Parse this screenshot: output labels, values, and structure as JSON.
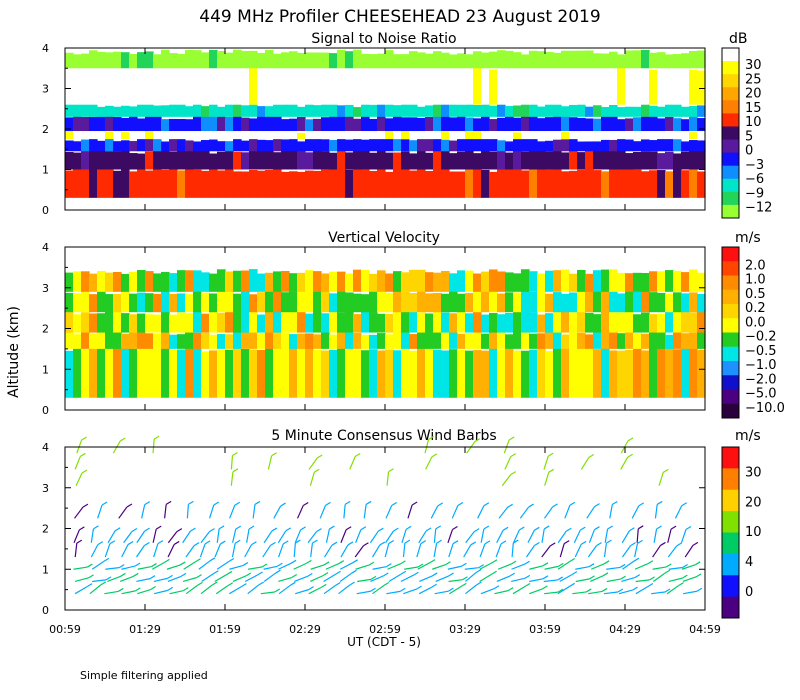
{
  "title": "449 MHz Profiler CHEESEHEAD 23 August 2019",
  "ylabel": "Altitude (km)",
  "xlabel": "UT  (CDT - 5)",
  "footer": "Simple filtering applied",
  "x_ticks": [
    "00:59",
    "01:29",
    "01:59",
    "02:29",
    "02:59",
    "03:29",
    "03:59",
    "04:29",
    "04:59"
  ],
  "colors": {
    "snr": [
      "#ffffff",
      "#ffff00",
      "#ffd700",
      "#ffa500",
      "#ff7f00",
      "#ff2a00",
      "#3d0a63",
      "#5a1a9e",
      "#1010ff",
      "#0f8fff",
      "#00e5c8",
      "#22d45a",
      "#99ff33"
    ],
    "vv": [
      "#ff1010",
      "#ff4500",
      "#ff8c00",
      "#ffb000",
      "#ffd500",
      "#ffff00",
      "#22cc22",
      "#00e5e5",
      "#1e90ff",
      "#1010cc",
      "#4b0082",
      "#2a003d"
    ],
    "wind": [
      "#ff1010",
      "#ff8000",
      "#ffd000",
      "#80e000",
      "#00cc66",
      "#00aaff",
      "#1010ff",
      "#4b0082"
    ]
  },
  "chart_data": [
    {
      "type": "heatmap",
      "title": "Signal to Noise Ratio",
      "unit": "dB",
      "yticks": [
        "0",
        "1",
        "2",
        "3",
        "4"
      ],
      "ylim": [
        0,
        4
      ],
      "colorbar_labels": [
        "30",
        "25",
        "20",
        "15",
        "10",
        "5",
        "0",
        "−3",
        "−6",
        "−9",
        "−12"
      ],
      "layers": [
        {
          "from_km": 0.3,
          "to_km": 1.0,
          "color_index": 5
        },
        {
          "from_km": 1.0,
          "to_km": 1.45,
          "color_index": 6
        },
        {
          "from_km": 1.45,
          "to_km": 1.75,
          "color_index": 8
        },
        {
          "from_km": 1.75,
          "to_km": 1.95,
          "color_index": 0
        },
        {
          "from_km": 1.95,
          "to_km": 2.3,
          "color_index": 8
        },
        {
          "from_km": 2.3,
          "to_km": 2.6,
          "color_index": 10
        },
        {
          "from_km": 2.6,
          "to_km": 3.5,
          "color_index": 0
        },
        {
          "from_km": 3.5,
          "to_km": 3.9,
          "color_index": 12
        }
      ]
    },
    {
      "type": "heatmap",
      "title": "Vertical Velocity",
      "unit": "m/s",
      "yticks": [
        "0",
        "1",
        "2",
        "3",
        "4"
      ],
      "ylim": [
        0,
        4
      ],
      "colorbar_labels": [
        "2.0",
        "1.0",
        "0.5",
        "0.2",
        "0.0",
        "−0.2",
        "−0.5",
        "−1.0",
        "−2.0",
        "−5.0",
        "−10.0"
      ],
      "layers": [
        {
          "from_km": 0.3,
          "to_km": 1.5,
          "color_index": 5
        },
        {
          "from_km": 1.5,
          "to_km": 1.9,
          "color_index": 6
        },
        {
          "from_km": 1.9,
          "to_km": 2.4,
          "color_index": 6
        },
        {
          "from_km": 2.4,
          "to_km": 2.9,
          "color_index": 5
        },
        {
          "from_km": 2.9,
          "to_km": 3.4,
          "color_index": 5
        }
      ]
    },
    {
      "type": "scatter",
      "title": "5 Minute Consensus Wind Barbs",
      "unit": "m/s",
      "yticks": [
        "0",
        "1",
        "2",
        "3",
        "4"
      ],
      "ylim": [
        0,
        4
      ],
      "colorbar_labels": [
        "30",
        "20",
        "10",
        "4",
        "0"
      ],
      "altitude_rows_km": [
        0.4,
        0.7,
        1.0,
        1.3,
        1.65,
        2.25,
        3.05,
        3.45,
        3.85
      ]
    }
  ]
}
